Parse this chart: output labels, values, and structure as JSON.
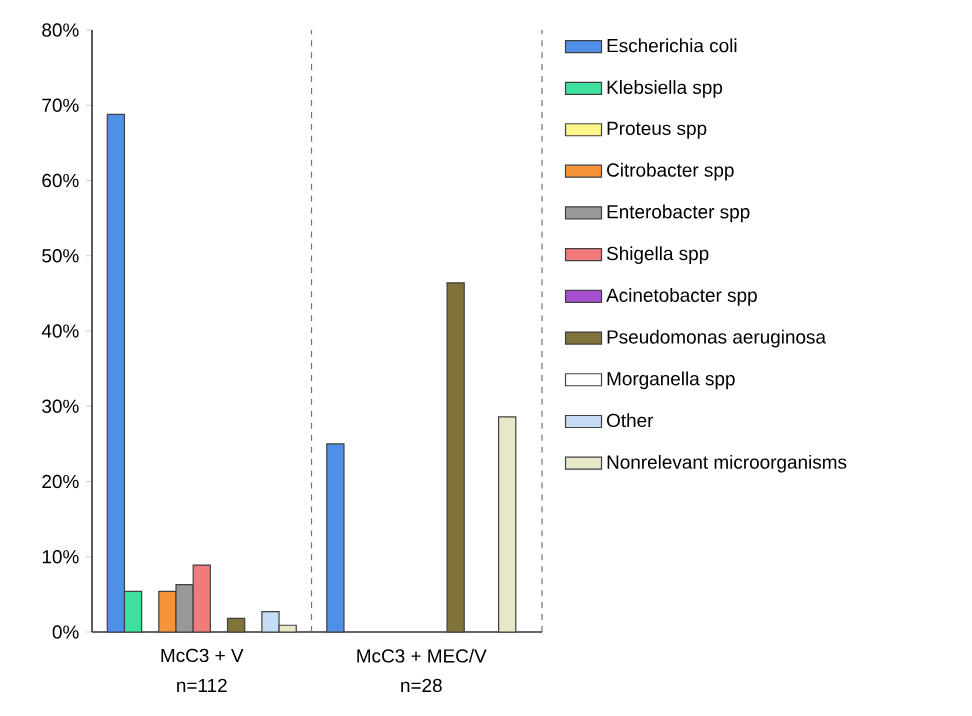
{
  "chart_data": {
    "type": "bar",
    "categories": [
      "McC3 + V",
      "McC3 + MEC/V"
    ],
    "series": [
      {
        "name": "Escherichia coli",
        "color": "#4f8fe6",
        "values": [
          68.8,
          25.0
        ]
      },
      {
        "name": "Klebsiella spp",
        "color": "#3ee0a0",
        "values": [
          5.4,
          0
        ]
      },
      {
        "name": "Proteus spp",
        "color": "#fbf58a",
        "values": [
          0,
          0
        ]
      },
      {
        "name": "Citrobacter spp",
        "color": "#f7943a",
        "values": [
          5.4,
          0
        ]
      },
      {
        "name": "Enterobacter spp",
        "color": "#999999",
        "values": [
          6.3,
          0
        ]
      },
      {
        "name": "Shigella spp",
        "color": "#f27a7a",
        "values": [
          8.9,
          0
        ]
      },
      {
        "name": "Acinetobacter spp",
        "color": "#a84fd1",
        "values": [
          0,
          0
        ]
      },
      {
        "name": "Pseudomonas aeruginosa",
        "color": "#80733a",
        "values": [
          1.8,
          46.4
        ]
      },
      {
        "name": "Morganella spp",
        "color": "#ffffff",
        "values": [
          0,
          0
        ]
      },
      {
        "name": "Other",
        "color": "#c5dcf5",
        "values": [
          2.7,
          0
        ]
      },
      {
        "name": "Nonrelevant microorganisms",
        "color": "#e8e8c8",
        "values": [
          0.9,
          28.6
        ]
      }
    ],
    "ylim": [
      0,
      80
    ],
    "yticks": [
      {
        "value": 0,
        "label": "0%"
      },
      {
        "value": 10,
        "label": "10%"
      },
      {
        "value": 20,
        "label": "20%"
      },
      {
        "value": 30,
        "label": "30%"
      },
      {
        "value": 40,
        "label": "40%"
      },
      {
        "value": 50,
        "label": "50%"
      },
      {
        "value": 60,
        "label": "60%"
      },
      {
        "value": 70,
        "label": "70%"
      },
      {
        "value": 80,
        "label": "80%"
      }
    ],
    "annotations": [
      "n=112",
      "n=28"
    ],
    "legend": "right",
    "grid": false
  }
}
